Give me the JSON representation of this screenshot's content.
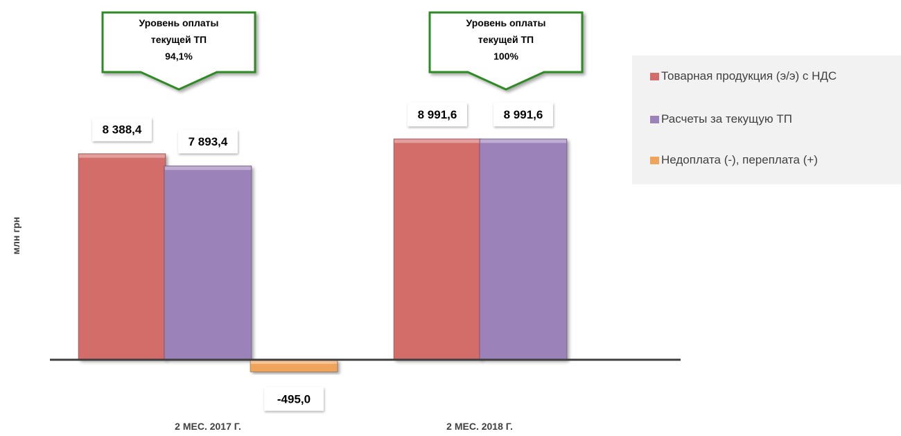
{
  "chart_data": {
    "type": "bar",
    "title": "",
    "xlabel": "",
    "ylabel": "млн грн",
    "categories": [
      "2 МЕС. 2017 Г.",
      "2 МЕС. 2018 Г."
    ],
    "series": [
      {
        "name": "Товарная продукция (э/э) с НДС",
        "values": [
          8388.4,
          8991.6
        ],
        "labels": [
          "8 388,4",
          "8 991,6"
        ],
        "color": "#d26d6b"
      },
      {
        "name": "Расчеты за текущую ТП",
        "values": [
          7893.4,
          8991.6
        ],
        "labels": [
          "7 893,4",
          "8 991,6"
        ],
        "color": "#9b82b9"
      },
      {
        "name": "Недоплата (-), переплата (+)",
        "values": [
          -495.0,
          null
        ],
        "labels": [
          "-495,0",
          ""
        ],
        "color": "#f0a35a"
      }
    ],
    "ylim": [
      -600,
      9000
    ],
    "grid": false,
    "legend_position": "right",
    "annotations": [
      {
        "category": "2 МЕС. 2017 Г.",
        "lines": [
          "Уровень оплаты",
          "текущей ТП",
          "94,1%"
        ]
      },
      {
        "category": "2 МЕС. 2018 Г.",
        "lines": [
          "Уровень оплаты",
          "текущей ТП",
          "100%"
        ]
      }
    ]
  }
}
